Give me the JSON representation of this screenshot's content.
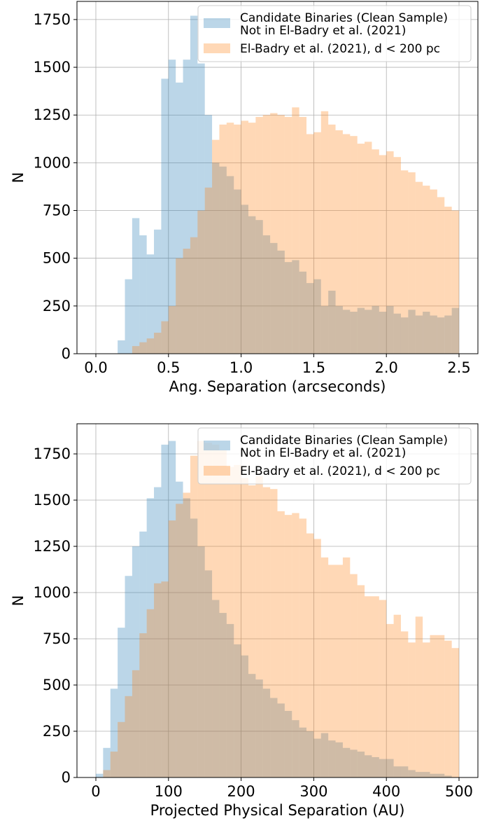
{
  "chart_data": [
    {
      "type": "histogram",
      "xlabel": "Ang. Separation (arcseconds)",
      "ylabel": "N",
      "bins": [
        0,
        0.05,
        0.1,
        0.15,
        0.2,
        0.25,
        0.3,
        0.35,
        0.4,
        0.45,
        0.5,
        0.55,
        0.6,
        0.65,
        0.7,
        0.75,
        0.8,
        0.85,
        0.9,
        0.95,
        1.0,
        1.05,
        1.1,
        1.15,
        1.2,
        1.25,
        1.3,
        1.35,
        1.4,
        1.45,
        1.5,
        1.55,
        1.6,
        1.65,
        1.7,
        1.75,
        1.8,
        1.85,
        1.9,
        1.95,
        2.0,
        2.05,
        2.1,
        2.15,
        2.2,
        2.25,
        2.3,
        2.35,
        2.4,
        2.45,
        2.5
      ],
      "series": [
        {
          "name": "Candidate Binaries (Clean Sample)\nNot in El-Badry et al. (2021)",
          "color": "#1f77b4",
          "values": [
            0,
            0,
            0,
            70,
            390,
            710,
            620,
            520,
            650,
            1440,
            1540,
            1420,
            1540,
            1770,
            1520,
            1250,
            1000,
            980,
            930,
            860,
            780,
            720,
            700,
            620,
            580,
            540,
            480,
            490,
            430,
            370,
            390,
            250,
            330,
            250,
            230,
            220,
            240,
            230,
            250,
            220,
            250,
            210,
            190,
            230,
            200,
            220,
            200,
            190,
            200,
            240
          ]
        },
        {
          "name": "El-Badry et al. (2021), d < 200 pc",
          "color": "#ff7f0e",
          "values": [
            0,
            0,
            0,
            0,
            0,
            40,
            60,
            80,
            110,
            170,
            250,
            500,
            550,
            610,
            750,
            870,
            1120,
            1200,
            1210,
            1200,
            1220,
            1210,
            1240,
            1250,
            1260,
            1250,
            1240,
            1290,
            1240,
            1150,
            1160,
            1270,
            1200,
            1170,
            1150,
            1140,
            1100,
            1110,
            1070,
            1040,
            1060,
            1030,
            960,
            950,
            900,
            880,
            860,
            820,
            770,
            750
          ]
        }
      ],
      "alpha": 0.3,
      "xlim": [
        -0.13,
        2.63
      ],
      "ylim": [
        0,
        1845
      ],
      "xticks": [
        {
          "value": 0,
          "label": "0.0"
        },
        0.5,
        {
          "value": 1,
          "label": "1.0"
        },
        1.5,
        {
          "value": 2,
          "label": "2.0"
        },
        2.5
      ],
      "yticks": [
        0,
        250,
        500,
        750,
        1000,
        1250,
        1500,
        1750
      ],
      "grid": true,
      "legend": "upper right"
    },
    {
      "type": "histogram",
      "xlabel": "Projected Physical Separation (AU)",
      "ylabel": "N",
      "bins": [
        0,
        10,
        20,
        30,
        40,
        50,
        60,
        70,
        80,
        90,
        100,
        110,
        120,
        130,
        140,
        150,
        160,
        170,
        180,
        190,
        200,
        210,
        220,
        230,
        240,
        250,
        260,
        270,
        280,
        290,
        300,
        310,
        320,
        330,
        340,
        350,
        360,
        370,
        380,
        390,
        400,
        410,
        420,
        430,
        440,
        450,
        460,
        470,
        480,
        490,
        500
      ],
      "series": [
        {
          "name": "Candidate Binaries (Clean Sample)\nNot in El-Badry et al. (2021)",
          "color": "#1f77b4",
          "values": [
            20,
            160,
            480,
            810,
            1090,
            1250,
            1330,
            1510,
            1570,
            1800,
            1820,
            1600,
            1510,
            1400,
            1250,
            1120,
            960,
            890,
            830,
            720,
            660,
            560,
            530,
            480,
            430,
            400,
            360,
            310,
            270,
            250,
            210,
            240,
            200,
            190,
            160,
            150,
            140,
            120,
            110,
            100,
            100,
            60,
            60,
            40,
            30,
            30,
            20,
            20,
            10,
            0
          ]
        },
        {
          "name": "El-Badry et al. (2021), d < 200 pc",
          "color": "#ff7f0e",
          "values": [
            0,
            40,
            140,
            300,
            440,
            580,
            780,
            910,
            1050,
            1060,
            1390,
            1480,
            1540,
            1740,
            1820,
            1810,
            1800,
            1770,
            1680,
            1690,
            1620,
            1580,
            1630,
            1570,
            1560,
            1440,
            1420,
            1430,
            1400,
            1320,
            1290,
            1190,
            1150,
            1150,
            1190,
            1100,
            1040,
            980,
            980,
            960,
            830,
            880,
            790,
            730,
            870,
            730,
            770,
            770,
            740,
            700
          ]
        }
      ],
      "alpha": 0.3,
      "xlim": [
        -26,
        526
      ],
      "ylim": [
        0,
        1913
      ],
      "xticks": [
        0,
        100,
        200,
        300,
        400,
        500
      ],
      "yticks": [
        0,
        250,
        500,
        750,
        1000,
        1250,
        1500,
        1750
      ],
      "grid": true,
      "legend": "upper right"
    }
  ]
}
